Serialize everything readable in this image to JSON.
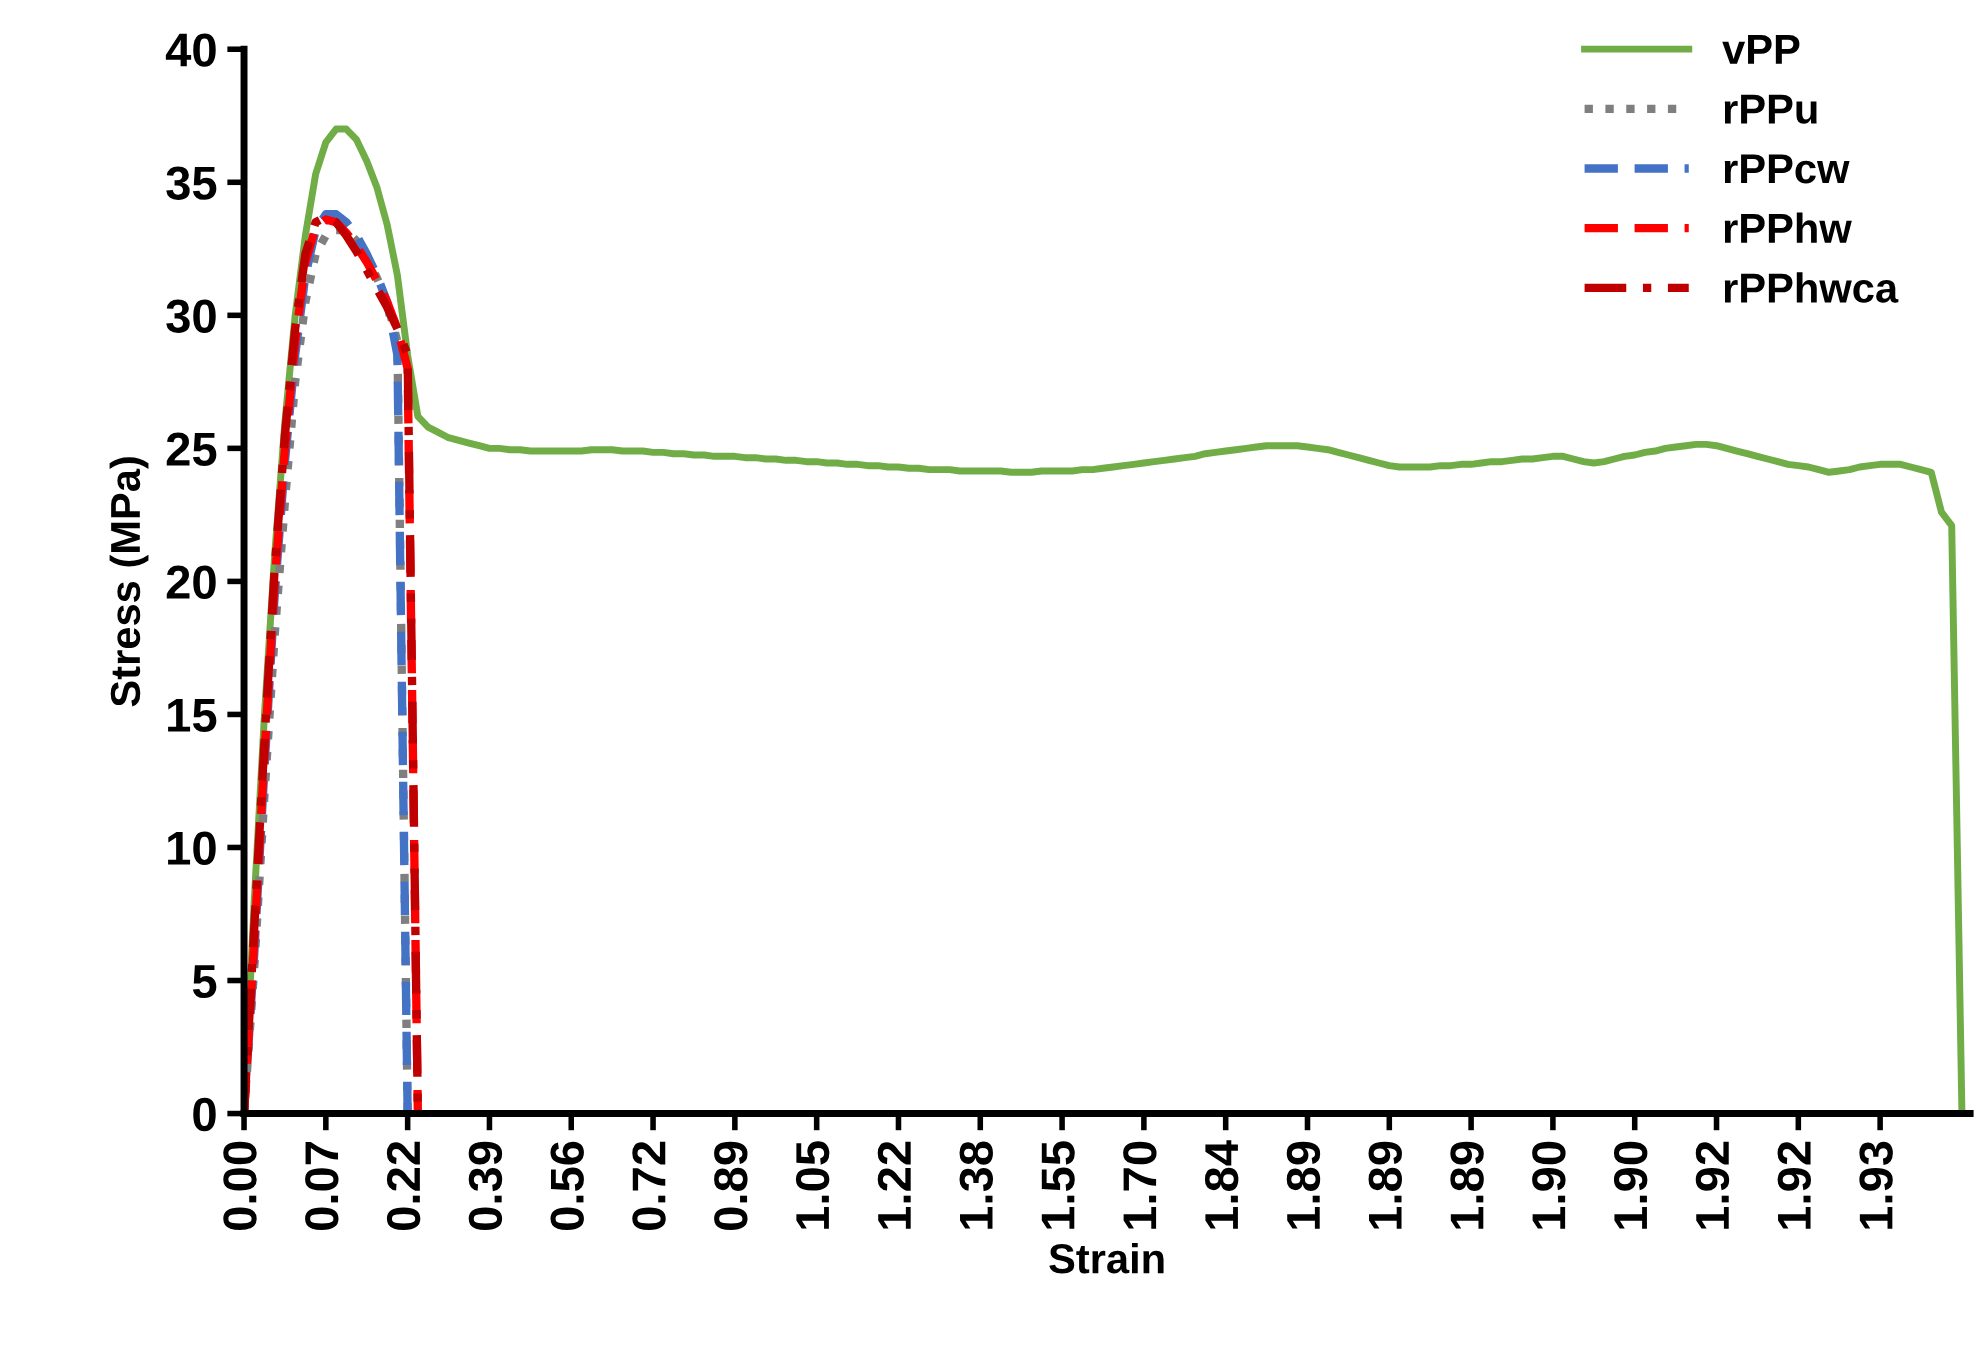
{
  "chart_data": {
    "type": "line",
    "xlabel": "Strain",
    "ylabel": "Stress (MPa)",
    "categories": [
      "0.00",
      null,
      null,
      null,
      null,
      null,
      null,
      null,
      "0.07",
      null,
      null,
      null,
      null,
      null,
      null,
      null,
      "0.22",
      null,
      null,
      null,
      null,
      null,
      null,
      null,
      "0.39",
      null,
      null,
      null,
      null,
      null,
      null,
      null,
      "0.56",
      null,
      null,
      null,
      null,
      null,
      null,
      null,
      "0.72",
      null,
      null,
      null,
      null,
      null,
      null,
      null,
      "0.89",
      null,
      null,
      null,
      null,
      null,
      null,
      null,
      "1.05",
      null,
      null,
      null,
      null,
      null,
      null,
      null,
      "1.22",
      null,
      null,
      null,
      null,
      null,
      null,
      null,
      "1.38",
      null,
      null,
      null,
      null,
      null,
      null,
      null,
      "1.55",
      null,
      null,
      null,
      null,
      null,
      null,
      null,
      "1.70",
      null,
      null,
      null,
      null,
      null,
      null,
      null,
      "1.84",
      null,
      null,
      null,
      null,
      null,
      null,
      null,
      "1.89",
      null,
      null,
      null,
      null,
      null,
      null,
      null,
      "1.89",
      null,
      null,
      null,
      null,
      null,
      null,
      null,
      "1.89",
      null,
      null,
      null,
      null,
      null,
      null,
      null,
      "1.90",
      null,
      null,
      null,
      null,
      null,
      null,
      null,
      "1.90",
      null,
      null,
      null,
      null,
      null,
      null,
      null,
      "1.92",
      null,
      null,
      null,
      null,
      null,
      null,
      null,
      "1.92",
      null,
      null,
      null,
      null,
      null,
      null,
      null,
      "1.93",
      null,
      null,
      null,
      null,
      null,
      null,
      null,
      null
    ],
    "ylim": [
      0,
      40
    ],
    "yticks": [
      0,
      5,
      10,
      15,
      20,
      25,
      30,
      35,
      40
    ],
    "grid": false,
    "legend": "top right",
    "marker": "none",
    "series": [
      {
        "name": "vPP",
        "color": "#70ad47",
        "line_style": "solid",
        "values": [
          0,
          8,
          15,
          21,
          26,
          30,
          33,
          35.3,
          36.5,
          37,
          37,
          36.6,
          35.8,
          34.8,
          33.4,
          31.5,
          28.5,
          26.2,
          25.8,
          25.6,
          25.4,
          25.3,
          25.2,
          25.1,
          25.0,
          25.0,
          24.95,
          24.95,
          24.9,
          24.9,
          24.9,
          24.9,
          24.9,
          24.9,
          24.95,
          24.95,
          24.95,
          24.9,
          24.9,
          24.9,
          24.85,
          24.85,
          24.8,
          24.8,
          24.75,
          24.75,
          24.7,
          24.7,
          24.7,
          24.65,
          24.65,
          24.6,
          24.6,
          24.55,
          24.55,
          24.5,
          24.5,
          24.45,
          24.45,
          24.4,
          24.4,
          24.35,
          24.35,
          24.3,
          24.3,
          24.25,
          24.25,
          24.2,
          24.2,
          24.2,
          24.15,
          24.15,
          24.15,
          24.15,
          24.15,
          24.1,
          24.1,
          24.1,
          24.15,
          24.15,
          24.15,
          24.15,
          24.2,
          24.2,
          24.25,
          24.3,
          24.35,
          24.4,
          24.45,
          24.5,
          24.55,
          24.6,
          24.65,
          24.7,
          24.8,
          24.85,
          24.9,
          24.95,
          25.0,
          25.05,
          25.1,
          25.1,
          25.1,
          25.1,
          25.05,
          25.0,
          24.95,
          24.85,
          24.75,
          24.65,
          24.55,
          24.45,
          24.35,
          24.3,
          24.3,
          24.3,
          24.3,
          24.35,
          24.35,
          24.4,
          24.4,
          24.45,
          24.5,
          24.5,
          24.55,
          24.6,
          24.6,
          24.65,
          24.7,
          24.7,
          24.6,
          24.5,
          24.45,
          24.5,
          24.6,
          24.7,
          24.75,
          24.85,
          24.9,
          25.0,
          25.05,
          25.1,
          25.15,
          25.15,
          25.1,
          25.0,
          24.9,
          24.8,
          24.7,
          24.6,
          24.5,
          24.4,
          24.35,
          24.3,
          24.2,
          24.1,
          24.15,
          24.2,
          24.3,
          24.35,
          24.4,
          24.4,
          24.4,
          24.3,
          24.2,
          24.1,
          22.6,
          22.1,
          0
        ]
      },
      {
        "name": "rPPu",
        "color": "#7f7f7f",
        "line_style": "dotted",
        "values": [
          0,
          5.5,
          12,
          18,
          23,
          27.5,
          30.5,
          32.3,
          33,
          33.2,
          33.2,
          32.8,
          32.2,
          31.4,
          30.5,
          29,
          0,
          null,
          null,
          null,
          null,
          null,
          null,
          null,
          null,
          null,
          null,
          null,
          null,
          null,
          null,
          null,
          null,
          null,
          null,
          null,
          null,
          null,
          null,
          null,
          null,
          null,
          null,
          null,
          null,
          null,
          null,
          null,
          null,
          null,
          null,
          null,
          null,
          null,
          null,
          null,
          null,
          null,
          null,
          null,
          null,
          null,
          null,
          null,
          null,
          null,
          null,
          null,
          null,
          null,
          null,
          null,
          null,
          null,
          null,
          null,
          null,
          null,
          null,
          null,
          null,
          null,
          null,
          null,
          null,
          null,
          null,
          null,
          null,
          null,
          null,
          null,
          null,
          null,
          null,
          null,
          null,
          null,
          null,
          null,
          null,
          null,
          null,
          null,
          null,
          null,
          null,
          null,
          null,
          null,
          null,
          null,
          null,
          null,
          null,
          null,
          null,
          null,
          null,
          null,
          null,
          null,
          null,
          null,
          null,
          null,
          null,
          null,
          null,
          null,
          null,
          null,
          null,
          null,
          null,
          null,
          null,
          null,
          null,
          null,
          null,
          null,
          null,
          null,
          null,
          null,
          null,
          null,
          null,
          null,
          null,
          null,
          null,
          null,
          null,
          null,
          null,
          null,
          null,
          null,
          null,
          null,
          null,
          null,
          null,
          null,
          null,
          null,
          null
        ]
      },
      {
        "name": "rPPcw",
        "color": "#4472c4",
        "line_style": "dashed",
        "values": [
          0,
          6,
          13,
          19.5,
          24.5,
          28.5,
          31.5,
          33.2,
          33.8,
          33.8,
          33.5,
          33,
          32.3,
          31.5,
          30.5,
          28.5,
          0,
          null,
          null,
          null,
          null,
          null,
          null,
          null,
          null,
          null,
          null,
          null,
          null,
          null,
          null,
          null,
          null,
          null,
          null,
          null,
          null,
          null,
          null,
          null,
          null,
          null,
          null,
          null,
          null,
          null,
          null,
          null,
          null,
          null,
          null,
          null,
          null,
          null,
          null,
          null,
          null,
          null,
          null,
          null,
          null,
          null,
          null,
          null,
          null,
          null,
          null,
          null,
          null,
          null,
          null,
          null,
          null,
          null,
          null,
          null,
          null,
          null,
          null,
          null,
          null,
          null,
          null,
          null,
          null,
          null,
          null,
          null,
          null,
          null,
          null,
          null,
          null,
          null,
          null,
          null,
          null,
          null,
          null,
          null,
          null,
          null,
          null,
          null,
          null,
          null,
          null,
          null,
          null,
          null,
          null,
          null,
          null,
          null,
          null,
          null,
          null,
          null,
          null,
          null,
          null,
          null,
          null,
          null,
          null,
          null,
          null,
          null,
          null,
          null,
          null,
          null,
          null,
          null,
          null,
          null,
          null,
          null,
          null,
          null,
          null,
          null,
          null,
          null,
          null,
          null,
          null,
          null,
          null,
          null,
          null,
          null,
          null,
          null,
          null,
          null,
          null,
          null,
          null,
          null,
          null,
          null,
          null,
          null,
          null,
          null,
          null,
          null,
          null
        ]
      },
      {
        "name": "rPPhw",
        "color": "#ff0000",
        "line_style": "dashed",
        "values": [
          0,
          6.5,
          13.5,
          20,
          25,
          29,
          32,
          33.3,
          33.6,
          33.5,
          33.1,
          32.6,
          32,
          31.3,
          30.5,
          29.5,
          28,
          0,
          null,
          null,
          null,
          null,
          null,
          null,
          null,
          null,
          null,
          null,
          null,
          null,
          null,
          null,
          null,
          null,
          null,
          null,
          null,
          null,
          null,
          null,
          null,
          null,
          null,
          null,
          null,
          null,
          null,
          null,
          null,
          null,
          null,
          null,
          null,
          null,
          null,
          null,
          null,
          null,
          null,
          null,
          null,
          null,
          null,
          null,
          null,
          null,
          null,
          null,
          null,
          null,
          null,
          null,
          null,
          null,
          null,
          null,
          null,
          null,
          null,
          null,
          null,
          null,
          null,
          null,
          null,
          null,
          null,
          null,
          null,
          null,
          null,
          null,
          null,
          null,
          null,
          null,
          null,
          null,
          null,
          null,
          null,
          null,
          null,
          null,
          null,
          null,
          null,
          null,
          null,
          null,
          null,
          null,
          null,
          null,
          null,
          null,
          null,
          null,
          null,
          null,
          null,
          null,
          null,
          null,
          null,
          null,
          null,
          null,
          null,
          null,
          null,
          null,
          null,
          null,
          null,
          null,
          null,
          null,
          null,
          null,
          null,
          null,
          null,
          null,
          null,
          null,
          null,
          null,
          null,
          null,
          null,
          null,
          null,
          null,
          null,
          null,
          null,
          null,
          null,
          null,
          null,
          null,
          null,
          null,
          null,
          null,
          null,
          null,
          null
        ]
      },
      {
        "name": "rPPhwca",
        "color": "#c00000",
        "line_style": "dashdot",
        "values": [
          0,
          7,
          14,
          20.5,
          25.5,
          29.5,
          32.3,
          33.5,
          33.7,
          33.5,
          33,
          32.4,
          31.7,
          31,
          30.3,
          29.5,
          28.5,
          0,
          null,
          null,
          null,
          null,
          null,
          null,
          null,
          null,
          null,
          null,
          null,
          null,
          null,
          null,
          null,
          null,
          null,
          null,
          null,
          null,
          null,
          null,
          null,
          null,
          null,
          null,
          null,
          null,
          null,
          null,
          null,
          null,
          null,
          null,
          null,
          null,
          null,
          null,
          null,
          null,
          null,
          null,
          null,
          null,
          null,
          null,
          null,
          null,
          null,
          null,
          null,
          null,
          null,
          null,
          null,
          null,
          null,
          null,
          null,
          null,
          null,
          null,
          null,
          null,
          null,
          null,
          null,
          null,
          null,
          null,
          null,
          null,
          null,
          null,
          null,
          null,
          null,
          null,
          null,
          null,
          null,
          null,
          null,
          null,
          null,
          null,
          null,
          null,
          null,
          null,
          null,
          null,
          null,
          null,
          null,
          null,
          null,
          null,
          null,
          null,
          null,
          null,
          null,
          null,
          null,
          null,
          null,
          null,
          null,
          null,
          null,
          null,
          null,
          null,
          null,
          null,
          null,
          null,
          null,
          null,
          null,
          null,
          null,
          null,
          null,
          null,
          null,
          null,
          null,
          null,
          null,
          null,
          null,
          null,
          null,
          null,
          null,
          null,
          null,
          null,
          null,
          null,
          null,
          null,
          null,
          null,
          null,
          null,
          null,
          null,
          null
        ]
      }
    ]
  }
}
